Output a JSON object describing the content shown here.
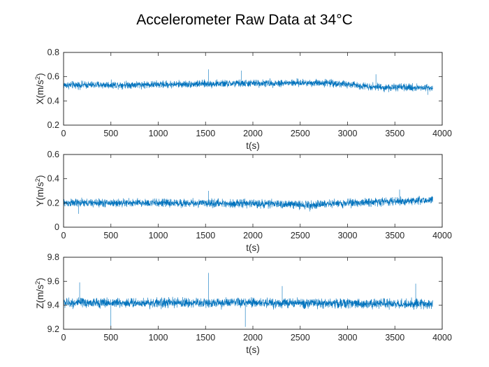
{
  "chart_data": {
    "type": "line",
    "title": "Accelerometer Raw Data at 34°C",
    "line_color": "#0072BD",
    "subplots": [
      {
        "id": "x",
        "ylabel_base": "X(m/s",
        "ylabel_sup": "2",
        "ylabel_tail": ")",
        "xlabel": "t(s)",
        "xlim": [
          0,
          4000
        ],
        "ylim": [
          0.2,
          0.8
        ],
        "xticks": [
          "0",
          "500",
          "1000",
          "1500",
          "2000",
          "2500",
          "3000",
          "3500",
          "4000"
        ],
        "yticks": [
          "0.2",
          "0.4",
          "0.6",
          "0.8"
        ],
        "series": [
          {
            "x_range": [
              0,
              3900
            ],
            "mean_trend": [
              [
                0,
                0.53
              ],
              [
                1000,
                0.535
              ],
              [
                2000,
                0.545
              ],
              [
                2800,
                0.55
              ],
              [
                3000,
                0.535
              ],
              [
                3400,
                0.51
              ],
              [
                3900,
                0.51
              ]
            ],
            "noise_band": 0.045,
            "spikes": [
              [
                1530,
                0.66
              ],
              [
                1880,
                0.65
              ],
              [
                3300,
                0.62
              ],
              [
                3850,
                0.45
              ]
            ]
          }
        ]
      },
      {
        "id": "y",
        "ylabel_base": "Y(m/s",
        "ylabel_sup": "2",
        "ylabel_tail": ")",
        "xlabel": "t(s)",
        "xlim": [
          0,
          4000
        ],
        "ylim": [
          0,
          0.6
        ],
        "xticks": [
          "0",
          "500",
          "1000",
          "1500",
          "2000",
          "2500",
          "3000",
          "3500",
          "4000"
        ],
        "yticks": [
          "0",
          "0.2",
          "0.4",
          "0.6"
        ],
        "series": [
          {
            "x_range": [
              0,
              3900
            ],
            "mean_trend": [
              [
                0,
                0.2
              ],
              [
                1000,
                0.2
              ],
              [
                2000,
                0.195
              ],
              [
                2600,
                0.185
              ],
              [
                3000,
                0.2
              ],
              [
                3900,
                0.225
              ]
            ],
            "noise_band": 0.05,
            "spikes": [
              [
                160,
                0.11
              ],
              [
                1530,
                0.3
              ],
              [
                2600,
                0.13
              ],
              [
                3550,
                0.31
              ]
            ]
          }
        ]
      },
      {
        "id": "z",
        "ylabel_base": "Z(m/s",
        "ylabel_sup": "2",
        "ylabel_tail": ")",
        "xlabel": "t(s)",
        "xlim": [
          0,
          4000
        ],
        "ylim": [
          9.2,
          9.8
        ],
        "xticks": [
          "0",
          "500",
          "1000",
          "1500",
          "2000",
          "2500",
          "3000",
          "3500",
          "4000"
        ],
        "yticks": [
          "9.2",
          "9.4",
          "9.6",
          "9.8"
        ],
        "series": [
          {
            "x_range": [
              0,
              3900
            ],
            "mean_trend": [
              [
                0,
                9.42
              ],
              [
                2000,
                9.42
              ],
              [
                3900,
                9.41
              ]
            ],
            "noise_band": 0.06,
            "spikes": [
              [
                170,
                9.59
              ],
              [
                500,
                9.2
              ],
              [
                1530,
                9.67
              ],
              [
                1920,
                9.22
              ],
              [
                2310,
                9.56
              ],
              [
                3720,
                9.58
              ]
            ]
          }
        ]
      }
    ]
  }
}
